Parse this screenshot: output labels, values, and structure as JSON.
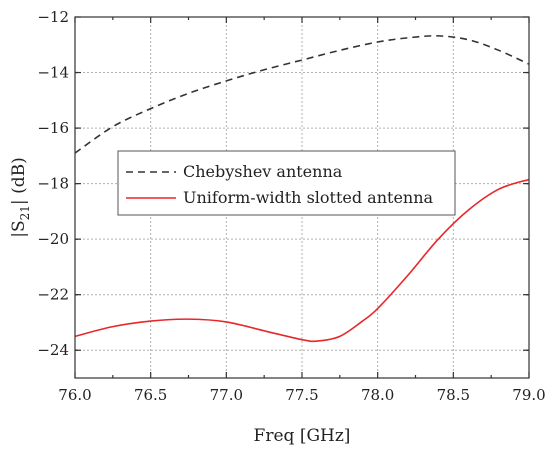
{
  "chart_data": {
    "type": "line",
    "xlabel": "Freq [GHz]",
    "ylabel_parts": {
      "pre": "|S",
      "sub": "21",
      "post": "| (dB)"
    },
    "xlim": [
      76.0,
      79.0
    ],
    "ylim": [
      -25,
      -12
    ],
    "xticks": [
      76.0,
      76.5,
      77.0,
      77.5,
      78.0,
      78.5,
      79.0
    ],
    "xtick_labels": [
      "76.0",
      "76.5",
      "77.0",
      "77.5",
      "78.0",
      "78.5",
      "79.0"
    ],
    "yticks": [
      -24,
      -22,
      -20,
      -18,
      -16,
      -14,
      -12
    ],
    "ytick_labels": [
      "−24",
      "−22",
      "−20",
      "−18",
      "−16",
      "−14",
      "−12"
    ],
    "grid": true,
    "legend_position": "middle-left",
    "series": [
      {
        "name": "Chebyshev antenna",
        "color": "#333333",
        "style": "dashed",
        "x": [
          76.0,
          76.25,
          76.5,
          76.75,
          77.0,
          77.25,
          77.5,
          77.75,
          78.0,
          78.2,
          78.4,
          78.6,
          78.8,
          79.0
        ],
        "y": [
          -16.9,
          -15.95,
          -15.3,
          -14.75,
          -14.3,
          -13.9,
          -13.55,
          -13.2,
          -12.9,
          -12.75,
          -12.68,
          -12.82,
          -13.2,
          -13.7
        ]
      },
      {
        "name": "Uniform-width slotted antenna",
        "color": "#e8272a",
        "style": "solid",
        "x": [
          76.0,
          76.25,
          76.5,
          76.75,
          77.0,
          77.25,
          77.5,
          77.6,
          77.75,
          77.9,
          78.0,
          78.2,
          78.4,
          78.6,
          78.8,
          79.0
        ],
        "y": [
          -23.5,
          -23.15,
          -22.95,
          -22.88,
          -22.98,
          -23.3,
          -23.62,
          -23.67,
          -23.5,
          -22.95,
          -22.5,
          -21.3,
          -20.0,
          -18.95,
          -18.2,
          -17.85
        ]
      }
    ]
  }
}
